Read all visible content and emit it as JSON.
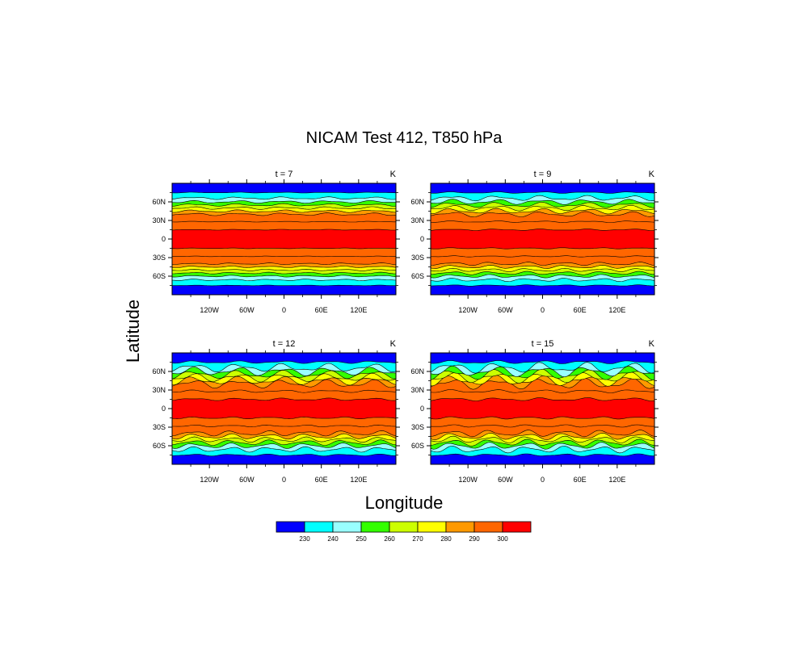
{
  "figure": {
    "title": "NICAM Test 412, T850 hPa",
    "ylabel": "Latitude",
    "xlabel": "Longitude"
  },
  "colors": {
    "levels": [
      "#0000ff",
      "#00ffff",
      "#99ffff",
      "#33ff00",
      "#ccff00",
      "#ffff00",
      "#ff9900",
      "#ff6600",
      "#ff0000"
    ],
    "ocean_pole": "#0000ff",
    "tropics": "#ff0000"
  },
  "chart_data": [
    {
      "type": "heatmap",
      "title": "t = 7",
      "units": "K",
      "x_ticks": [
        "120W",
        "60W",
        "0",
        "60E",
        "120E"
      ],
      "y_ticks": [
        "60N",
        "30N",
        "0",
        "30S",
        "60S"
      ],
      "xlim": [
        -180,
        180
      ],
      "ylim": [
        -90,
        90
      ],
      "wave_amplitude": 0.25
    },
    {
      "type": "heatmap",
      "title": "t = 9",
      "units": "K",
      "x_ticks": [
        "120W",
        "60W",
        "0",
        "60E",
        "120E"
      ],
      "y_ticks": [
        "60N",
        "30N",
        "0",
        "30S",
        "60S"
      ],
      "xlim": [
        -180,
        180
      ],
      "ylim": [
        -90,
        90
      ],
      "wave_amplitude": 0.5
    },
    {
      "type": "heatmap",
      "title": "t = 12",
      "units": "K",
      "x_ticks": [
        "120W",
        "60W",
        "0",
        "60E",
        "120E"
      ],
      "y_ticks": [
        "60N",
        "30N",
        "0",
        "30S",
        "60S"
      ],
      "xlim": [
        -180,
        180
      ],
      "ylim": [
        -90,
        90
      ],
      "wave_amplitude": 0.8
    },
    {
      "type": "heatmap",
      "title": "t = 15",
      "units": "K",
      "x_ticks": [
        "120W",
        "60W",
        "0",
        "60E",
        "120E"
      ],
      "y_ticks": [
        "60N",
        "30N",
        "0",
        "30S",
        "60S"
      ],
      "xlim": [
        -180,
        180
      ],
      "ylim": [
        -90,
        90
      ],
      "wave_amplitude": 1.0
    }
  ],
  "colorbar": {
    "labels": [
      "230",
      "240",
      "250",
      "260",
      "270",
      "280",
      "290",
      "300"
    ]
  }
}
